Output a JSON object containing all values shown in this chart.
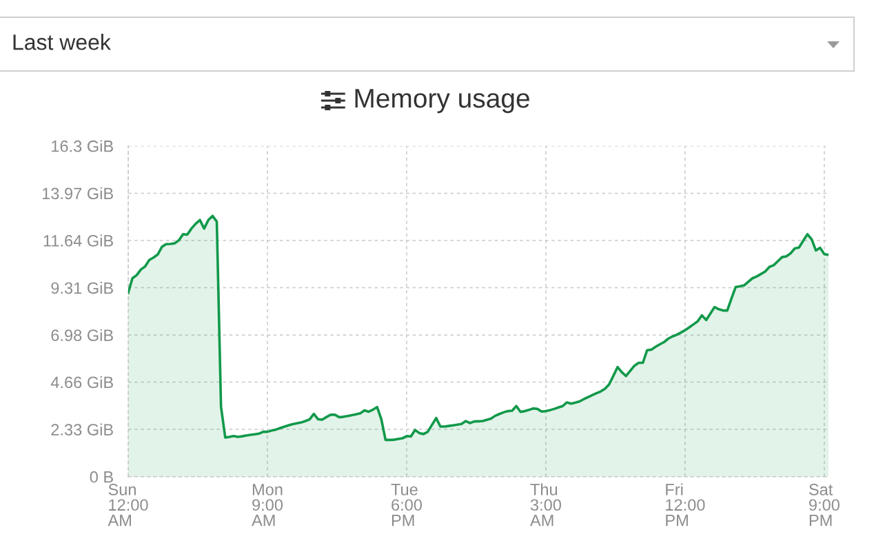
{
  "chart_data": {
    "type": "area",
    "title": "Memory usage",
    "subtitle": "Last week",
    "categories": [
      "Sun\n12:00\nAM",
      null,
      null,
      null,
      null,
      null,
      null,
      null,
      null,
      null,
      null,
      null,
      null,
      null,
      null,
      null,
      null,
      null,
      null,
      null,
      null,
      null,
      null,
      null,
      null,
      null,
      null,
      null,
      null,
      null,
      null,
      null,
      null,
      "Mon\n9:00\nAM",
      null,
      null,
      null,
      null,
      null,
      null,
      null,
      null,
      null,
      null,
      null,
      null,
      null,
      null,
      null,
      null,
      null,
      null,
      null,
      null,
      null,
      null,
      null,
      null,
      null,
      null,
      null,
      null,
      null,
      null,
      null,
      null,
      "Tue\n6:00\nPM",
      null,
      null,
      null,
      null,
      null,
      null,
      null,
      null,
      null,
      null,
      null,
      null,
      null,
      null,
      null,
      null,
      null,
      null,
      null,
      null,
      null,
      null,
      null,
      null,
      null,
      null,
      null,
      null,
      null,
      null,
      null,
      null,
      "Thu\n3:00\nAM",
      null,
      null,
      null,
      null,
      null,
      null,
      null,
      null,
      null,
      null,
      null,
      null,
      null,
      null,
      null,
      null,
      null,
      null,
      null,
      null,
      null,
      null,
      null,
      null,
      null,
      null,
      null,
      null,
      null,
      null,
      null,
      null,
      "Fri\n12:00\nPM",
      null,
      null,
      null,
      null,
      null,
      null,
      null,
      null,
      null,
      null,
      null,
      null,
      null,
      null,
      null,
      null,
      null,
      null,
      null,
      null,
      null,
      null,
      null,
      null,
      null,
      null,
      null,
      null,
      null,
      null,
      null,
      null,
      "Sat\n9:00\nPM",
      null
    ],
    "series": [
      {
        "color": "#11994a",
        "values": [
          9.06,
          9.78,
          9.93,
          10.21,
          10.36,
          10.68,
          10.8,
          10.95,
          11.33,
          11.46,
          11.47,
          11.5,
          11.65,
          11.95,
          11.93,
          12.23,
          12.47,
          12.65,
          12.23,
          12.65,
          12.85,
          12.57,
          3.45,
          1.93,
          1.96,
          2.0,
          1.96,
          1.99,
          2.03,
          2.06,
          2.09,
          2.12,
          2.21,
          2.21,
          2.27,
          2.32,
          2.39,
          2.46,
          2.53,
          2.59,
          2.63,
          2.67,
          2.74,
          2.82,
          3.09,
          2.83,
          2.81,
          2.94,
          3.05,
          3.05,
          2.93,
          2.95,
          2.99,
          3.03,
          3.07,
          3.12,
          3.27,
          3.2,
          3.3,
          3.43,
          2.83,
          1.81,
          1.81,
          1.82,
          1.86,
          1.89,
          2.0,
          1.98,
          2.3,
          2.15,
          2.1,
          2.21,
          2.55,
          2.89,
          2.47,
          2.47,
          2.5,
          2.53,
          2.56,
          2.6,
          2.74,
          2.64,
          2.72,
          2.73,
          2.74,
          2.8,
          2.86,
          3.0,
          3.09,
          3.17,
          3.23,
          3.25,
          3.48,
          3.19,
          3.23,
          3.29,
          3.36,
          3.34,
          3.21,
          3.23,
          3.28,
          3.34,
          3.41,
          3.48,
          3.66,
          3.6,
          3.65,
          3.71,
          3.82,
          3.92,
          4.02,
          4.11,
          4.2,
          4.33,
          4.55,
          4.97,
          5.4,
          5.15,
          4.96,
          5.22,
          5.47,
          5.61,
          5.61,
          6.23,
          6.26,
          6.4,
          6.52,
          6.63,
          6.8,
          6.91,
          6.99,
          7.1,
          7.22,
          7.36,
          7.51,
          7.66,
          7.95,
          7.72,
          8.04,
          8.36,
          8.25,
          8.19,
          8.19,
          8.78,
          9.35,
          9.38,
          9.43,
          9.61,
          9.78,
          9.87,
          9.99,
          10.11,
          10.34,
          10.42,
          10.62,
          10.82,
          10.86,
          11.0,
          11.25,
          11.29,
          11.62,
          11.95,
          11.7,
          11.15,
          11.28,
          10.97,
          10.93
        ]
      }
    ],
    "ylim": [
      0,
      16.3
    ],
    "yticks": [
      {
        "value": 0,
        "label": "0 B"
      },
      {
        "value": 2.33,
        "label": "2.33 GiB"
      },
      {
        "value": 4.66,
        "label": "4.66 GiB"
      },
      {
        "value": 6.98,
        "label": "6.98 GiB"
      },
      {
        "value": 9.31,
        "label": "9.31 GiB"
      },
      {
        "value": 11.64,
        "label": "11.64 GiB"
      },
      {
        "value": 13.97,
        "label": "13.97 GiB"
      },
      {
        "value": 16.3,
        "label": "16.3 GiB"
      }
    ],
    "grid": true,
    "line_style": "solid"
  }
}
